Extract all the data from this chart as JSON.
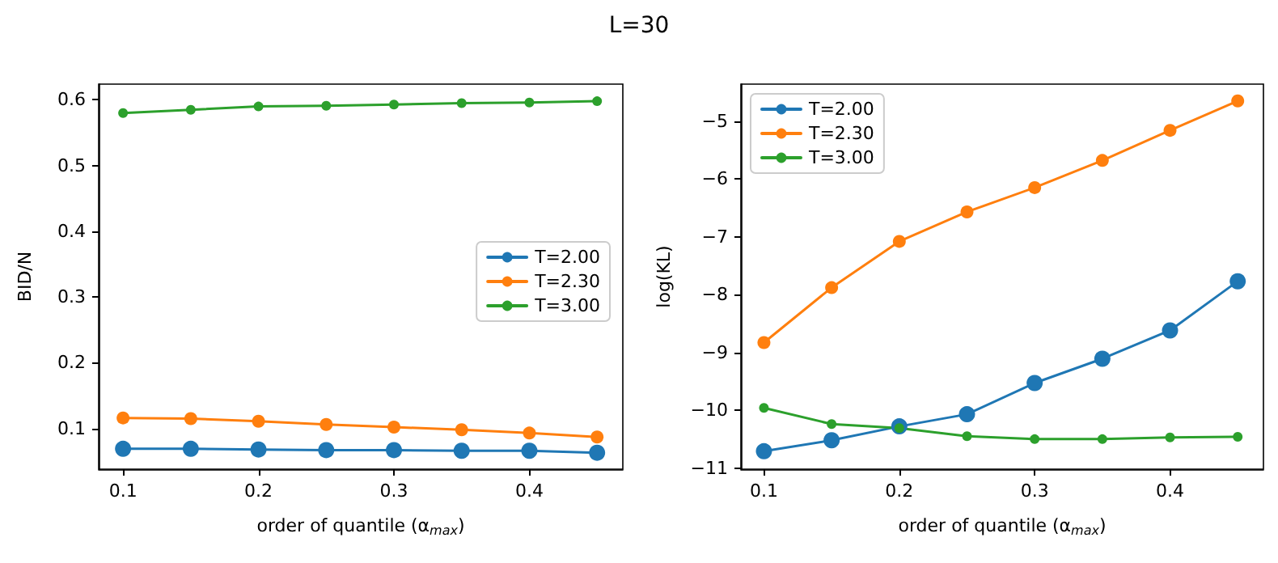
{
  "chart_data": [
    {
      "type": "line",
      "title": "L=30",
      "xlabel": "order of quantile (α$_{max}$)",
      "ylabel": "BID/N",
      "x": [
        0.1,
        0.15,
        0.2,
        0.25,
        0.3,
        0.35,
        0.4,
        0.45
      ],
      "xlim": [
        0.082,
        0.469
      ],
      "xticks": [
        0.1,
        0.2,
        0.3,
        0.4
      ],
      "ylim": [
        0.038,
        0.624
      ],
      "yticks": [
        0.1,
        0.2,
        0.3,
        0.4,
        0.5,
        0.6
      ],
      "grid": false,
      "legend": "right",
      "marker": "circle",
      "line_style": "solid",
      "series": [
        {
          "name": "T=2.00",
          "color": "#1f77b4",
          "values": [
            0.069,
            0.069,
            0.068,
            0.067,
            0.067,
            0.066,
            0.066,
            0.063
          ]
        },
        {
          "name": "T=2.30",
          "color": "#ff7f0e",
          "values": [
            0.116,
            0.115,
            0.111,
            0.106,
            0.102,
            0.098,
            0.093,
            0.087
          ]
        },
        {
          "name": "T=3.00",
          "color": "#2ca02c",
          "values": [
            0.58,
            0.585,
            0.59,
            0.591,
            0.593,
            0.595,
            0.596,
            0.598
          ]
        }
      ]
    },
    {
      "type": "line",
      "xlabel": "order of quantile (α$_{max}$)",
      "ylabel": "log(KL)",
      "x": [
        0.1,
        0.15,
        0.2,
        0.25,
        0.3,
        0.35,
        0.4,
        0.45
      ],
      "xlim": [
        0.083,
        0.469
      ],
      "xticks": [
        0.1,
        0.2,
        0.3,
        0.4
      ],
      "ylim": [
        -11.02,
        -4.36
      ],
      "yticks": [
        -11,
        -10,
        -9,
        -8,
        -7,
        -6,
        -5
      ],
      "grid": false,
      "legend": "top left",
      "marker": "circle",
      "line_style": "solid",
      "series": [
        {
          "name": "T=2.00",
          "color": "#1f77b4",
          "values": [
            -10.71,
            -10.52,
            -10.28,
            -10.07,
            -9.53,
            -9.11,
            -8.62,
            -7.77
          ]
        },
        {
          "name": "T=2.30",
          "color": "#ff7f0e",
          "values": [
            -8.83,
            -7.88,
            -7.08,
            -6.57,
            -6.15,
            -5.68,
            -5.16,
            -4.65
          ]
        },
        {
          "name": "T=3.00",
          "color": "#2ca02c",
          "values": [
            -9.96,
            -10.24,
            -10.31,
            -10.45,
            -10.5,
            -10.5,
            -10.47,
            -10.46
          ]
        }
      ]
    }
  ]
}
